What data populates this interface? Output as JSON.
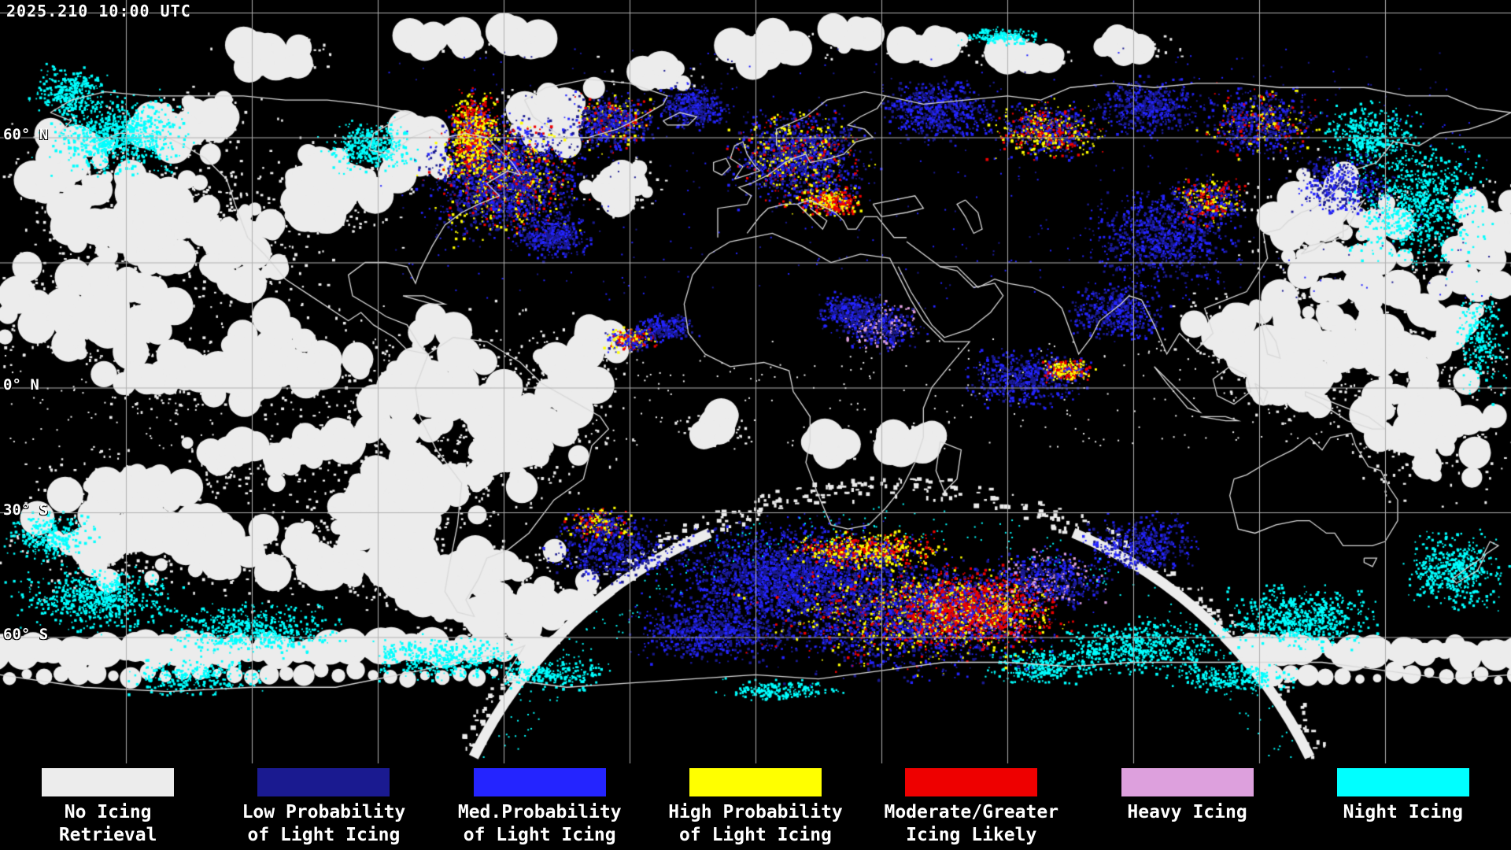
{
  "header": {
    "timestamp": "2025.210 10:00 UTC"
  },
  "map": {
    "latitude_labels": [
      "60° N",
      "0° N",
      "30° S",
      "60° S"
    ],
    "colors": {
      "background": "#000000",
      "grid": "#b0b0b0",
      "coastline": "#d9d9d9"
    }
  },
  "legend": {
    "items": [
      {
        "key": "no_icing_retrieval",
        "color": "#ececec",
        "lines": [
          "No Icing",
          "Retrieval"
        ]
      },
      {
        "key": "low_prob_light_icing",
        "color": "#1a1a90",
        "lines": [
          "Low Probability",
          "of Light Icing"
        ]
      },
      {
        "key": "med_prob_light_icing",
        "color": "#2424ff",
        "lines": [
          "Med.Probability",
          "of Light Icing"
        ]
      },
      {
        "key": "high_prob_light_icing",
        "color": "#ffff00",
        "lines": [
          "High Probability",
          "of Light Icing"
        ]
      },
      {
        "key": "moderate_greater_icing",
        "color": "#ee0000",
        "lines": [
          "Moderate/Greater",
          "Icing Likely"
        ]
      },
      {
        "key": "heavy_icing",
        "color": "#dda0dd",
        "lines": [
          "Heavy Icing"
        ]
      },
      {
        "key": "night_icing",
        "color": "#00ffff",
        "lines": [
          "Night Icing"
        ]
      }
    ]
  }
}
